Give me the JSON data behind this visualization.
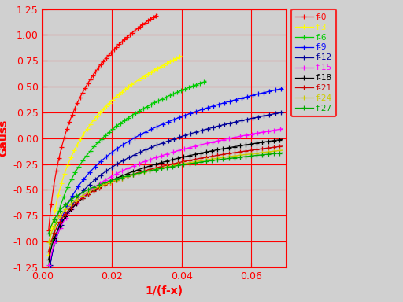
{
  "xlabel": "1/(f-x)",
  "ylabel": "Gauss",
  "xlim": [
    0.0,
    0.07
  ],
  "ylim": [
    -1.25,
    1.25
  ],
  "bg_color": "#d0d0d0",
  "grid_color": "#ff0000",
  "text_color": "#ff0000",
  "series": [
    {
      "label": "f-0",
      "color": "#ff0000",
      "a": 0.72,
      "b": 160.0,
      "xmin": 0.0018,
      "xmax": 0.033
    },
    {
      "label": "f-3",
      "color": "#ffff00",
      "a": 0.62,
      "b": 90.0,
      "xmin": 0.0018,
      "xmax": 0.04
    },
    {
      "label": "f-6",
      "color": "#00cc00",
      "a": 0.55,
      "b": 58.0,
      "xmin": 0.0018,
      "xmax": 0.047
    },
    {
      "label": "f-9",
      "color": "#0000ff",
      "a": 0.5,
      "b": 38.0,
      "xmin": 0.0018,
      "xmax": 0.069
    },
    {
      "label": "f-12",
      "color": "#000099",
      "a": 0.43,
      "b": 26.0,
      "xmin": 0.0018,
      "xmax": 0.069
    },
    {
      "label": "f-15",
      "color": "#ff00ff",
      "a": 0.37,
      "b": 18.5,
      "xmin": 0.0018,
      "xmax": 0.069
    },
    {
      "label": "f-18",
      "color": "#000000",
      "a": 0.32,
      "b": 14.0,
      "xmin": 0.0018,
      "xmax": 0.069
    },
    {
      "label": "f-21",
      "color": "#cc0000",
      "a": 0.28,
      "b": 11.0,
      "xmin": 0.0018,
      "xmax": 0.069
    },
    {
      "label": "f-24",
      "color": "#cccc00",
      "a": 0.245,
      "b": 9.0,
      "xmin": 0.0018,
      "xmax": 0.069
    },
    {
      "label": "f-27",
      "color": "#00aa00",
      "a": 0.215,
      "b": 7.5,
      "xmin": 0.0018,
      "xmax": 0.069
    }
  ],
  "marker_every": 12,
  "marker_size": 4,
  "linewidth": 0.9
}
